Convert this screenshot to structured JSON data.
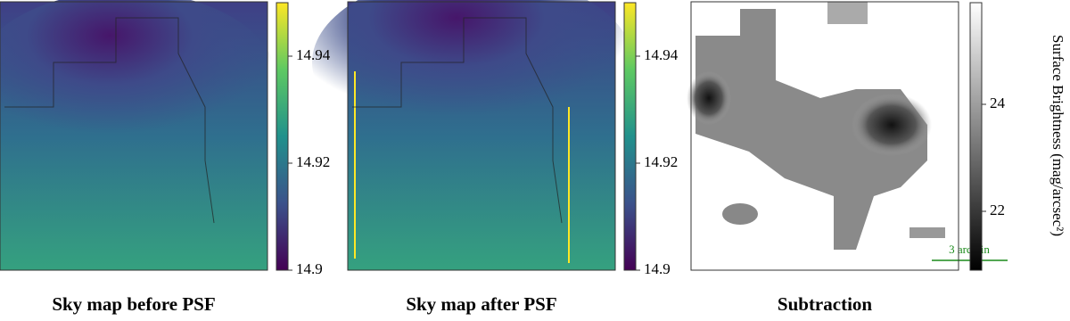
{
  "panels": [
    {
      "title": "Sky map before PSF",
      "colorbar": {
        "lim": [
          14.9,
          14.95
        ],
        "ticks": [
          14.9,
          14.92,
          14.94
        ],
        "colormap": "viridis"
      }
    },
    {
      "title": "Sky map after PSF",
      "colorbar": {
        "lim": [
          14.9,
          14.95
        ],
        "ticks": [
          14.9,
          14.92,
          14.94
        ],
        "colormap": "viridis"
      }
    },
    {
      "title": "Subtraction",
      "colorbar": {
        "lim": [
          20.9,
          25.9
        ],
        "ticks": [
          22,
          24
        ],
        "colormap": "gray",
        "label": "Surface Brightness (mag/arcsec²)"
      },
      "scale_bar": "3 arcmin"
    }
  ]
}
